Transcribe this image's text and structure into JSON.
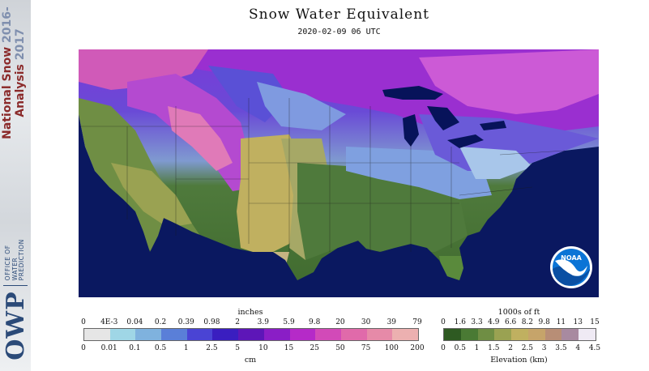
{
  "header": {
    "title": "Snow Water Equivalent",
    "timestamp": "2020-02-09 06 UTC"
  },
  "sidebar": {
    "product_name_line1": "National Snow",
    "product_name_line2": "Analysis",
    "years_line1": "2016-",
    "years_line2": "2017",
    "office_abbrev": "OWP",
    "office_line1": "OFFICE OF",
    "office_line2": "WATER",
    "office_line3": "PREDICTION"
  },
  "map": {
    "region": "Contiguous United States",
    "logo_text": "NOAA",
    "colors": {
      "ocean": "#0a1860",
      "lakes": "#07135a",
      "logo_blue": "#0b74d6"
    }
  },
  "swe_legend": {
    "top_units": "inches",
    "bottom_units": "cm",
    "top_ticks": [
      "0",
      "4E-3",
      "0.04",
      "0.2",
      "0.39",
      "0.98",
      "2",
      "3.9",
      "5.9",
      "9.8",
      "20",
      "30",
      "39",
      "79"
    ],
    "bottom_ticks": [
      "0",
      "0.01",
      "0.1",
      "0.5",
      "1",
      "2.5",
      "5",
      "10",
      "15",
      "25",
      "50",
      "75",
      "100",
      "200"
    ],
    "colors": [
      "#e6e6e6",
      "#9fd6e6",
      "#7fb2de",
      "#5a7fd8",
      "#4a44d4",
      "#3a1ec0",
      "#5d16b8",
      "#8a1ec6",
      "#b52ac8",
      "#d24ab8",
      "#e06aaa",
      "#e68aa8",
      "#ecb0b0"
    ]
  },
  "elevation_legend": {
    "top_units": "1000s of ft",
    "bottom_units": "Elevation (km)",
    "top_ticks": [
      "0",
      "1.6",
      "3.3",
      "4.9",
      "6.6",
      "8.2",
      "9.8",
      "11",
      "13",
      "15"
    ],
    "bottom_ticks": [
      "0",
      "0.5",
      "1",
      "1.5",
      "2",
      "2.5",
      "3",
      "3.5",
      "4",
      "4.5"
    ],
    "colors": [
      "#2e5a22",
      "#4a7a34",
      "#6f8e44",
      "#9aa252",
      "#c0b060",
      "#c6a46a",
      "#b88e76",
      "#a88aa0",
      "#efeaf4"
    ]
  }
}
